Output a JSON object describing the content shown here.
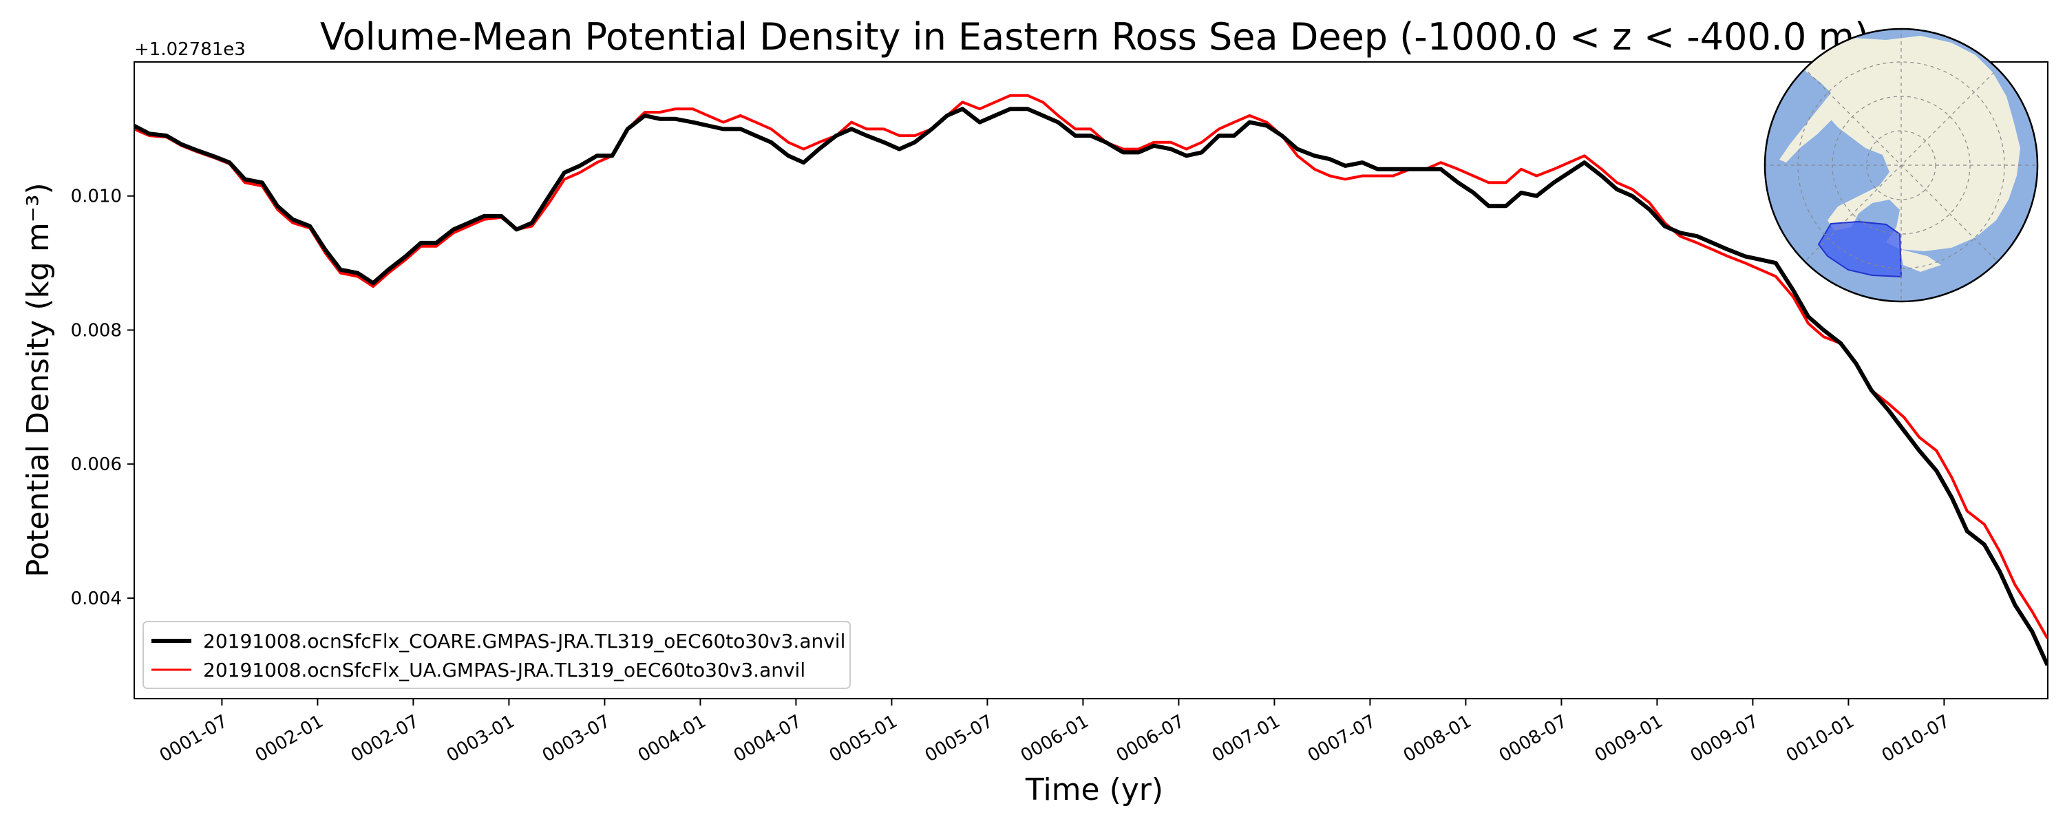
{
  "chart_data": {
    "type": "line",
    "title": "Volume-Mean Potential Density in Eastern Ross Sea Deep (-1000.0 < z < -400.0 m)",
    "xlabel": "Time (yr)",
    "ylabel": "Potential Density (kg m⁻³)",
    "offset_label": "+1.02781e3",
    "xlim": [
      0.0417,
      10.0417
    ],
    "ylim": [
      0.0025,
      0.012
    ],
    "x_ticks": [
      {
        "value": 0.5,
        "label": "0001-07"
      },
      {
        "value": 1.0,
        "label": "0002-01"
      },
      {
        "value": 1.5,
        "label": "0002-07"
      },
      {
        "value": 2.0,
        "label": "0003-01"
      },
      {
        "value": 2.5,
        "label": "0003-07"
      },
      {
        "value": 3.0,
        "label": "0004-01"
      },
      {
        "value": 3.5,
        "label": "0004-07"
      },
      {
        "value": 4.0,
        "label": "0005-01"
      },
      {
        "value": 4.5,
        "label": "0005-07"
      },
      {
        "value": 5.0,
        "label": "0006-01"
      },
      {
        "value": 5.5,
        "label": "0006-07"
      },
      {
        "value": 6.0,
        "label": "0007-01"
      },
      {
        "value": 6.5,
        "label": "0007-07"
      },
      {
        "value": 7.0,
        "label": "0008-01"
      },
      {
        "value": 7.5,
        "label": "0008-07"
      },
      {
        "value": 8.0,
        "label": "0009-01"
      },
      {
        "value": 8.5,
        "label": "0009-07"
      },
      {
        "value": 9.0,
        "label": "0010-01"
      },
      {
        "value": 9.5,
        "label": "0010-07"
      }
    ],
    "y_ticks": [
      {
        "value": 0.004,
        "label": "0.004"
      },
      {
        "value": 0.006,
        "label": "0.006"
      },
      {
        "value": 0.008,
        "label": "0.008"
      },
      {
        "value": 0.01,
        "label": "0.010"
      }
    ],
    "grid": false,
    "legend_position": "lower-left",
    "series": [
      {
        "name": "20191008.ocnSfcFlx_COARE.GMPAS-JRA.TL319_oEC60to30v3.anvil",
        "color": "#000000",
        "line_width": 3,
        "x": [
          0.04,
          0.12,
          0.21,
          0.29,
          0.37,
          0.46,
          0.54,
          0.62,
          0.71,
          0.79,
          0.87,
          0.96,
          1.04,
          1.12,
          1.21,
          1.29,
          1.37,
          1.46,
          1.54,
          1.62,
          1.71,
          1.79,
          1.87,
          1.96,
          2.04,
          2.12,
          2.21,
          2.29,
          2.37,
          2.46,
          2.54,
          2.62,
          2.71,
          2.79,
          2.87,
          2.96,
          3.04,
          3.12,
          3.21,
          3.29,
          3.37,
          3.46,
          3.54,
          3.62,
          3.71,
          3.79,
          3.87,
          3.96,
          4.04,
          4.12,
          4.21,
          4.29,
          4.37,
          4.46,
          4.54,
          4.62,
          4.71,
          4.79,
          4.87,
          4.96,
          5.04,
          5.12,
          5.21,
          5.29,
          5.37,
          5.46,
          5.54,
          5.62,
          5.71,
          5.79,
          5.87,
          5.96,
          6.04,
          6.12,
          6.21,
          6.29,
          6.37,
          6.46,
          6.54,
          6.62,
          6.71,
          6.79,
          6.87,
          6.96,
          7.04,
          7.12,
          7.21,
          7.29,
          7.37,
          7.46,
          7.54,
          7.62,
          7.71,
          7.79,
          7.87,
          7.96,
          8.04,
          8.12,
          8.21,
          8.29,
          8.37,
          8.46,
          8.54,
          8.62,
          8.71,
          8.79,
          8.87,
          8.96,
          9.04,
          9.12,
          9.21,
          9.29,
          9.37,
          9.46,
          9.54,
          9.62,
          9.71,
          9.79,
          9.87,
          9.96,
          10.04
        ],
        "y": [
          0.01105,
          0.01093,
          0.0109,
          0.01077,
          0.01068,
          0.01059,
          0.0105,
          0.01025,
          0.0102,
          0.00985,
          0.00965,
          0.00955,
          0.0092,
          0.0089,
          0.00885,
          0.0087,
          0.0089,
          0.0091,
          0.0093,
          0.0093,
          0.0095,
          0.0096,
          0.0097,
          0.0097,
          0.0095,
          0.0096,
          0.01,
          0.01035,
          0.01045,
          0.0106,
          0.0106,
          0.011,
          0.0112,
          0.01115,
          0.01115,
          0.0111,
          0.01105,
          0.011,
          0.011,
          0.0109,
          0.0108,
          0.0106,
          0.0105,
          0.0107,
          0.0109,
          0.011,
          0.0109,
          0.0108,
          0.0107,
          0.0108,
          0.011,
          0.0112,
          0.0113,
          0.0111,
          0.0112,
          0.0113,
          0.0113,
          0.0112,
          0.0111,
          0.0109,
          0.0109,
          0.0108,
          0.01065,
          0.01065,
          0.01075,
          0.0107,
          0.0106,
          0.01065,
          0.0109,
          0.0109,
          0.0111,
          0.01105,
          0.0109,
          0.0107,
          0.0106,
          0.01055,
          0.01045,
          0.0105,
          0.0104,
          0.0104,
          0.0104,
          0.0104,
          0.0104,
          0.0102,
          0.01005,
          0.00985,
          0.00985,
          0.01005,
          0.01,
          0.0102,
          0.01035,
          0.0105,
          0.0103,
          0.0101,
          0.01,
          0.0098,
          0.00955,
          0.00945,
          0.0094,
          0.0093,
          0.0092,
          0.0091,
          0.00905,
          0.009,
          0.0086,
          0.0082,
          0.008,
          0.0078,
          0.0075,
          0.0071,
          0.0068,
          0.0065,
          0.0062,
          0.0059,
          0.0055,
          0.005,
          0.0048,
          0.0044,
          0.0039,
          0.0035,
          0.003
        ]
      },
      {
        "name": "20191008.ocnSfcFlx_UA.GMPAS-JRA.TL319_oEC60to30v3.anvil",
        "color": "#ff0000",
        "line_width": 2,
        "x": [
          0.04,
          0.12,
          0.21,
          0.29,
          0.37,
          0.46,
          0.54,
          0.62,
          0.71,
          0.79,
          0.87,
          0.96,
          1.04,
          1.12,
          1.21,
          1.29,
          1.37,
          1.46,
          1.54,
          1.62,
          1.71,
          1.79,
          1.87,
          1.96,
          2.04,
          2.12,
          2.21,
          2.29,
          2.37,
          2.46,
          2.54,
          2.62,
          2.71,
          2.79,
          2.87,
          2.96,
          3.04,
          3.12,
          3.21,
          3.29,
          3.37,
          3.46,
          3.54,
          3.62,
          3.71,
          3.79,
          3.87,
          3.96,
          4.04,
          4.12,
          4.21,
          4.29,
          4.37,
          4.46,
          4.54,
          4.62,
          4.71,
          4.79,
          4.87,
          4.96,
          5.04,
          5.12,
          5.21,
          5.29,
          5.37,
          5.46,
          5.54,
          5.62,
          5.71,
          5.79,
          5.87,
          5.96,
          6.04,
          6.12,
          6.21,
          6.29,
          6.37,
          6.46,
          6.54,
          6.62,
          6.71,
          6.79,
          6.87,
          6.96,
          7.04,
          7.12,
          7.21,
          7.29,
          7.37,
          7.46,
          7.54,
          7.62,
          7.71,
          7.79,
          7.87,
          7.96,
          8.04,
          8.12,
          8.21,
          8.29,
          8.37,
          8.46,
          8.54,
          8.62,
          8.71,
          8.79,
          8.87,
          8.96,
          9.04,
          9.12,
          9.21,
          9.29,
          9.37,
          9.46,
          9.54,
          9.62,
          9.71,
          9.79,
          9.87,
          9.96,
          10.04
        ],
        "y": [
          0.011,
          0.0109,
          0.01088,
          0.01075,
          0.01066,
          0.01057,
          0.01048,
          0.0102,
          0.01015,
          0.0098,
          0.0096,
          0.00952,
          0.00915,
          0.00885,
          0.0088,
          0.00865,
          0.00885,
          0.00905,
          0.00925,
          0.00925,
          0.00945,
          0.00955,
          0.00965,
          0.00968,
          0.0095,
          0.00955,
          0.0099,
          0.01025,
          0.01035,
          0.0105,
          0.0106,
          0.011,
          0.01125,
          0.01125,
          0.0113,
          0.0113,
          0.0112,
          0.0111,
          0.0112,
          0.0111,
          0.011,
          0.0108,
          0.0107,
          0.0108,
          0.0109,
          0.0111,
          0.011,
          0.011,
          0.0109,
          0.0109,
          0.011,
          0.0112,
          0.0114,
          0.0113,
          0.0114,
          0.0115,
          0.0115,
          0.0114,
          0.0112,
          0.011,
          0.011,
          0.0108,
          0.0107,
          0.0107,
          0.0108,
          0.0108,
          0.0107,
          0.0108,
          0.011,
          0.0111,
          0.0112,
          0.0111,
          0.0109,
          0.0106,
          0.0104,
          0.0103,
          0.01025,
          0.0103,
          0.0103,
          0.0103,
          0.0104,
          0.0104,
          0.0105,
          0.0104,
          0.0103,
          0.0102,
          0.0102,
          0.0104,
          0.0103,
          0.0104,
          0.0105,
          0.0106,
          0.0104,
          0.0102,
          0.0101,
          0.0099,
          0.0096,
          0.0094,
          0.0093,
          0.0092,
          0.0091,
          0.009,
          0.0089,
          0.0088,
          0.0085,
          0.0081,
          0.0079,
          0.0078,
          0.0075,
          0.0071,
          0.0069,
          0.0067,
          0.0064,
          0.0062,
          0.0058,
          0.0053,
          0.0051,
          0.0047,
          0.0042,
          0.0038,
          0.0034
        ]
      }
    ]
  },
  "inset_map": {
    "ocean_color": "#8eb1e2",
    "land_color": "#f0efde",
    "region_color": "#3f5ef0",
    "border_color": "#000000"
  }
}
